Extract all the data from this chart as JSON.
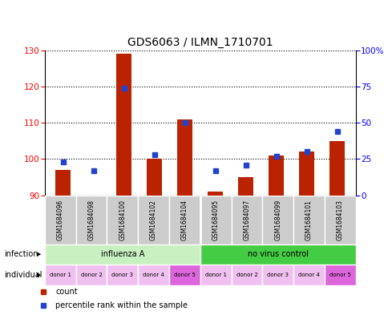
{
  "title": "GDS6063 / ILMN_1710701",
  "samples": [
    "GSM1684096",
    "GSM1684098",
    "GSM1684100",
    "GSM1684102",
    "GSM1684104",
    "GSM1684095",
    "GSM1684097",
    "GSM1684099",
    "GSM1684101",
    "GSM1684103"
  ],
  "counts": [
    97,
    90,
    129,
    100,
    111,
    91,
    95,
    101,
    102,
    105
  ],
  "percentile_ranks": [
    23,
    17,
    74,
    28,
    50,
    17,
    21,
    27,
    30,
    44
  ],
  "ylim_left": [
    90,
    130
  ],
  "ylim_right": [
    0,
    100
  ],
  "yticks_left": [
    90,
    100,
    110,
    120,
    130
  ],
  "yticks_right": [
    0,
    25,
    50,
    75,
    100
  ],
  "yticklabels_right": [
    "0",
    "25",
    "50",
    "75",
    "100%"
  ],
  "infection_groups": [
    {
      "label": "influenza A",
      "start": 0,
      "end": 5,
      "color": "#c8f0c0"
    },
    {
      "label": "no virus control",
      "start": 5,
      "end": 10,
      "color": "#44cc44"
    }
  ],
  "individuals": [
    "donor 1",
    "donor 2",
    "donor 3",
    "donor 4",
    "donor 5",
    "donor 1",
    "donor 2",
    "donor 3",
    "donor 4",
    "donor 5"
  ],
  "individual_colors": [
    "#f0c0f0",
    "#f0c0f0",
    "#f0c0f0",
    "#f0c0f0",
    "#dd66dd",
    "#f0c0f0",
    "#f0c0f0",
    "#f0c0f0",
    "#f0c0f0",
    "#dd66dd"
  ],
  "bar_color": "#bb2200",
  "dot_color": "#2244cc",
  "bar_width": 0.5,
  "sample_bg_color": "#cccccc",
  "legend_count_color": "#bb2200",
  "legend_pct_color": "#2244cc",
  "infection_label": "infection",
  "individual_label": "individual",
  "count_label": "count",
  "pct_label": "percentile rank within the sample",
  "grid_color": "#000000",
  "title_fontsize": 10,
  "tick_fontsize": 7.5,
  "label_fontsize": 7.5
}
